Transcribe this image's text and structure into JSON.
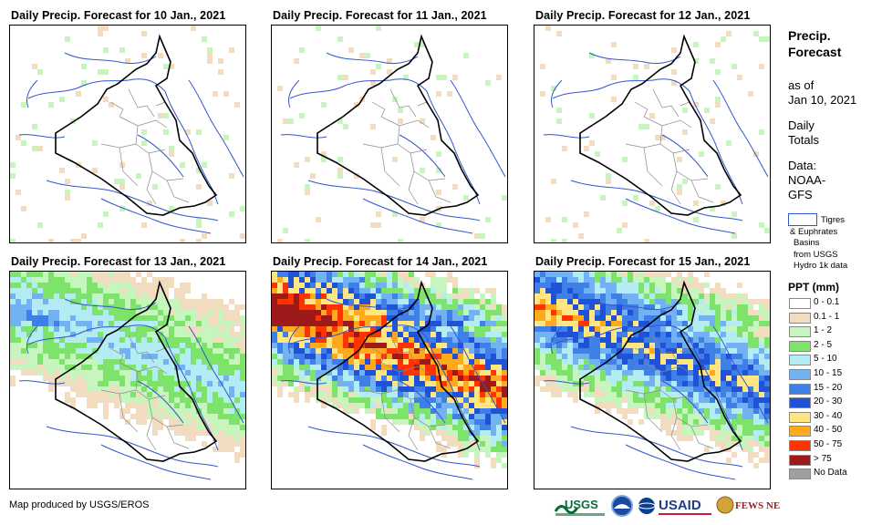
{
  "panels": [
    {
      "title": "Daily Precip. Forecast for 10 Jan., 2021",
      "intensity": 0.12
    },
    {
      "title": "Daily Precip. Forecast for 11 Jan., 2021",
      "intensity": 0.12
    },
    {
      "title": "Daily Precip. Forecast for 12 Jan., 2021",
      "intensity": 0.15
    },
    {
      "title": "Daily Precip. Forecast for 13 Jan., 2021",
      "intensity": 0.45
    },
    {
      "title": "Daily Precip. Forecast for 14 Jan., 2021",
      "intensity": 1.0
    },
    {
      "title": "Daily Precip. Forecast for 15 Jan., 2021",
      "intensity": 0.75
    }
  ],
  "sidebar": {
    "title_line1": "Precip.",
    "title_line2": "Forecast",
    "asof_line1": "as of",
    "asof_line2": "Jan 10, 2021",
    "totals_line1": "Daily",
    "totals_line2": "Totals",
    "data_line1": "Data:",
    "data_line2": "NOAA-",
    "data_line3": "GFS",
    "basin_line1": "Tigres",
    "basin_line2": "& Euphrates",
    "basin_line3": "Basins",
    "basin_line4": "from USGS",
    "basin_line5": "Hydro 1k data"
  },
  "legend": {
    "title": "PPT (mm)",
    "items": [
      {
        "label": "0 - 0.1",
        "color": "#ffffff"
      },
      {
        "label": "0.1 - 1",
        "color": "#f2dcc0"
      },
      {
        "label": "1 - 2",
        "color": "#c6f5bd"
      },
      {
        "label": "2 - 5",
        "color": "#7ee36a"
      },
      {
        "label": "5 - 10",
        "color": "#b4ecf4"
      },
      {
        "label": "10 - 15",
        "color": "#73b2f2"
      },
      {
        "label": "15 - 20",
        "color": "#3f7fe8"
      },
      {
        "label": "20 - 30",
        "color": "#1f52d6"
      },
      {
        "label": "30 - 40",
        "color": "#ffe680"
      },
      {
        "label": "40 - 50",
        "color": "#ffaa1c"
      },
      {
        "label": "50 - 75",
        "color": "#ff3300"
      },
      {
        "label": "> 75",
        "color": "#9e1a1a"
      },
      {
        "label": "No Data",
        "color": "#a0a0a0"
      }
    ]
  },
  "footer": {
    "credit": "Map produced by USGS/EROS",
    "logo_usgs": "USGS",
    "logo_usaid": "USAID",
    "logo_fews": "FEWS NET"
  }
}
